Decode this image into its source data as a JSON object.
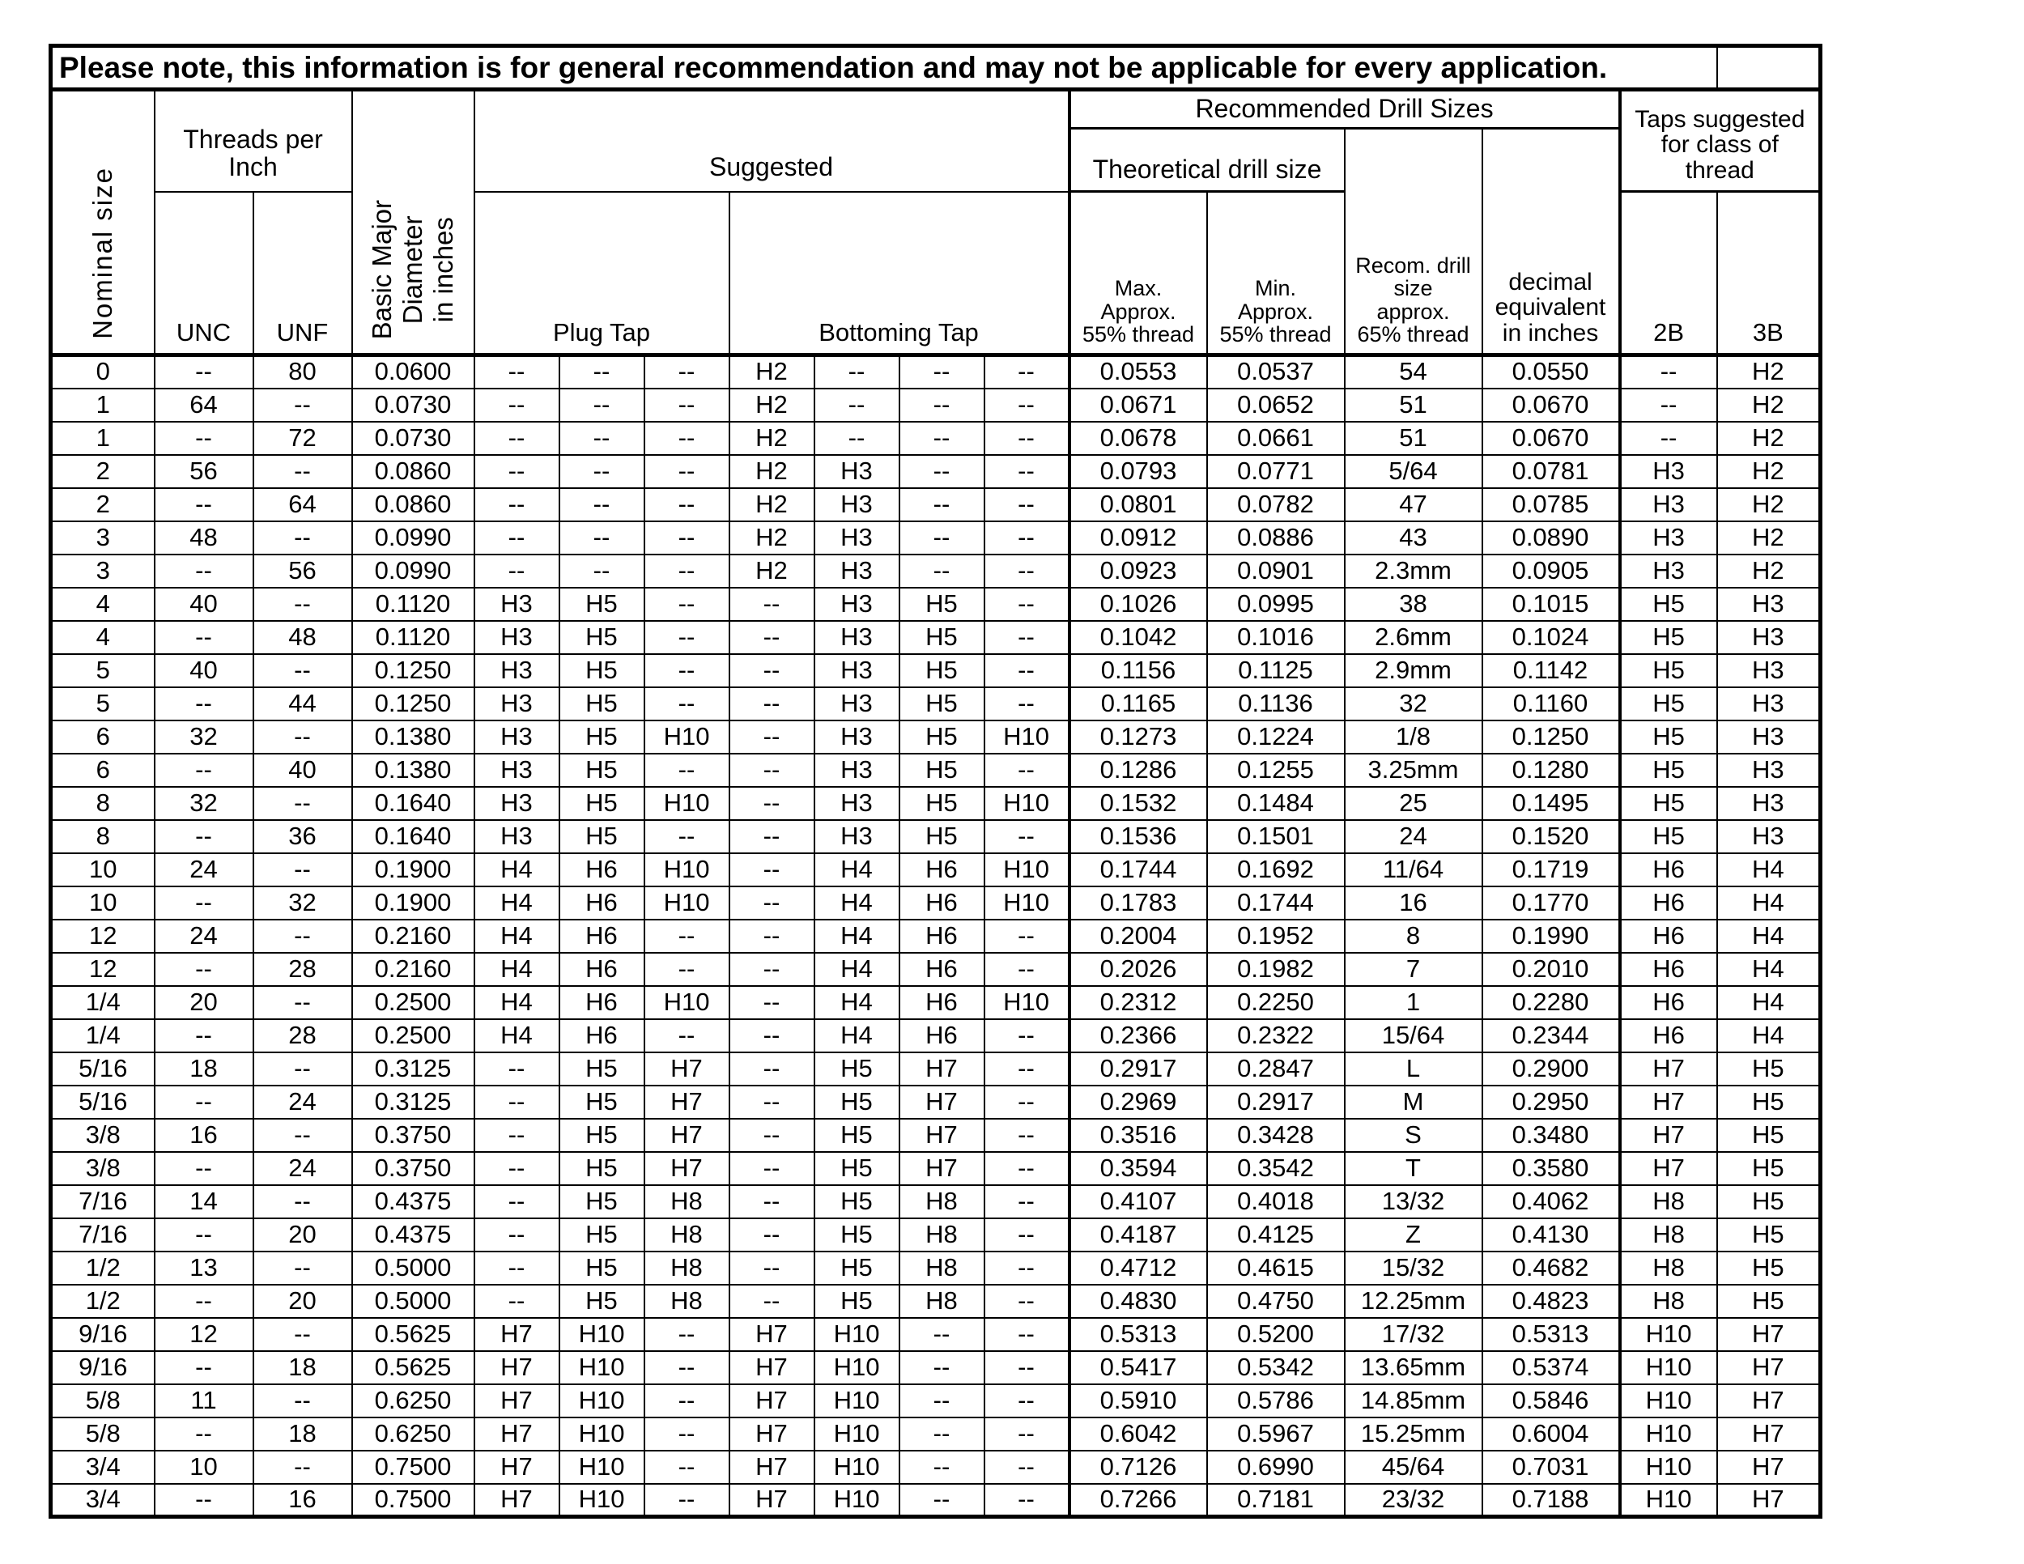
{
  "note": {
    "text": "Please note, this information is for general recommendation and may not be applicable for every application."
  },
  "header": {
    "nominal_size": "Nominal size",
    "threads_per_inch": "Threads per\nInch",
    "unc": "UNC",
    "unf": "UNF",
    "basic_major_diameter": "Basic Major\nDiameter\nin inches",
    "suggested": "Suggested",
    "plug_tap": "Plug Tap",
    "bottoming_tap": "Bottoming Tap",
    "recommended_drill_sizes": "Recommended Drill Sizes",
    "theoretical_drill_size": "Theoretical drill size",
    "max_approx": "Max.\nApprox.\n55% thread",
    "min_approx": "Min.\nApprox.\n55% thread",
    "recom_drill": "Recom. drill\nsize\napprox.\n65% thread",
    "decimal_equivalent": "decimal\nequivalent\nin inches",
    "taps_suggested": "Taps suggested\nfor class of\nthread",
    "class_2b": "2B",
    "class_3b": "3B"
  },
  "column_keys": [
    "nominal_size",
    "unc",
    "unf",
    "basic_major_diameter",
    "plug_tap_1",
    "plug_tap_2",
    "plug_tap_3",
    "bottoming_tap_1",
    "bottoming_tap_2",
    "bottoming_tap_3",
    "bottoming_tap_4",
    "max_approx_55",
    "min_approx_55",
    "recom_drill_65",
    "decimal_equivalent",
    "class_2b",
    "class_3b"
  ],
  "rows": [
    [
      "0",
      "--",
      "80",
      "0.0600",
      "--",
      "--",
      "--",
      "H2",
      "--",
      "--",
      "--",
      "0.0553",
      "0.0537",
      "54",
      "0.0550",
      "--",
      "H2"
    ],
    [
      "1",
      "64",
      "--",
      "0.0730",
      "--",
      "--",
      "--",
      "H2",
      "--",
      "--",
      "--",
      "0.0671",
      "0.0652",
      "51",
      "0.0670",
      "--",
      "H2"
    ],
    [
      "1",
      "--",
      "72",
      "0.0730",
      "--",
      "--",
      "--",
      "H2",
      "--",
      "--",
      "--",
      "0.0678",
      "0.0661",
      "51",
      "0.0670",
      "--",
      "H2"
    ],
    [
      "2",
      "56",
      "--",
      "0.0860",
      "--",
      "--",
      "--",
      "H2",
      "H3",
      "--",
      "--",
      "0.0793",
      "0.0771",
      "5/64",
      "0.0781",
      "H3",
      "H2"
    ],
    [
      "2",
      "--",
      "64",
      "0.0860",
      "--",
      "--",
      "--",
      "H2",
      "H3",
      "--",
      "--",
      "0.0801",
      "0.0782",
      "47",
      "0.0785",
      "H3",
      "H2"
    ],
    [
      "3",
      "48",
      "--",
      "0.0990",
      "--",
      "--",
      "--",
      "H2",
      "H3",
      "--",
      "--",
      "0.0912",
      "0.0886",
      "43",
      "0.0890",
      "H3",
      "H2"
    ],
    [
      "3",
      "--",
      "56",
      "0.0990",
      "--",
      "--",
      "--",
      "H2",
      "H3",
      "--",
      "--",
      "0.0923",
      "0.0901",
      "2.3mm",
      "0.0905",
      "H3",
      "H2"
    ],
    [
      "4",
      "40",
      "--",
      "0.1120",
      "H3",
      "H5",
      "--",
      "--",
      "H3",
      "H5",
      "--",
      "0.1026",
      "0.0995",
      "38",
      "0.1015",
      "H5",
      "H3"
    ],
    [
      "4",
      "--",
      "48",
      "0.1120",
      "H3",
      "H5",
      "--",
      "--",
      "H3",
      "H5",
      "--",
      "0.1042",
      "0.1016",
      "2.6mm",
      "0.1024",
      "H5",
      "H3"
    ],
    [
      "5",
      "40",
      "--",
      "0.1250",
      "H3",
      "H5",
      "--",
      "--",
      "H3",
      "H5",
      "--",
      "0.1156",
      "0.1125",
      "2.9mm",
      "0.1142",
      "H5",
      "H3"
    ],
    [
      "5",
      "--",
      "44",
      "0.1250",
      "H3",
      "H5",
      "--",
      "--",
      "H3",
      "H5",
      "--",
      "0.1165",
      "0.1136",
      "32",
      "0.1160",
      "H5",
      "H3"
    ],
    [
      "6",
      "32",
      "--",
      "0.1380",
      "H3",
      "H5",
      "H10",
      "--",
      "H3",
      "H5",
      "H10",
      "0.1273",
      "0.1224",
      "1/8",
      "0.1250",
      "H5",
      "H3"
    ],
    [
      "6",
      "--",
      "40",
      "0.1380",
      "H3",
      "H5",
      "--",
      "--",
      "H3",
      "H5",
      "--",
      "0.1286",
      "0.1255",
      "3.25mm",
      "0.1280",
      "H5",
      "H3"
    ],
    [
      "8",
      "32",
      "--",
      "0.1640",
      "H3",
      "H5",
      "H10",
      "--",
      "H3",
      "H5",
      "H10",
      "0.1532",
      "0.1484",
      "25",
      "0.1495",
      "H5",
      "H3"
    ],
    [
      "8",
      "--",
      "36",
      "0.1640",
      "H3",
      "H5",
      "--",
      "--",
      "H3",
      "H5",
      "--",
      "0.1536",
      "0.1501",
      "24",
      "0.1520",
      "H5",
      "H3"
    ],
    [
      "10",
      "24",
      "--",
      "0.1900",
      "H4",
      "H6",
      "H10",
      "--",
      "H4",
      "H6",
      "H10",
      "0.1744",
      "0.1692",
      "11/64",
      "0.1719",
      "H6",
      "H4"
    ],
    [
      "10",
      "--",
      "32",
      "0.1900",
      "H4",
      "H6",
      "H10",
      "--",
      "H4",
      "H6",
      "H10",
      "0.1783",
      "0.1744",
      "16",
      "0.1770",
      "H6",
      "H4"
    ],
    [
      "12",
      "24",
      "--",
      "0.2160",
      "H4",
      "H6",
      "--",
      "--",
      "H4",
      "H6",
      "--",
      "0.2004",
      "0.1952",
      "8",
      "0.1990",
      "H6",
      "H4"
    ],
    [
      "12",
      "--",
      "28",
      "0.2160",
      "H4",
      "H6",
      "--",
      "--",
      "H4",
      "H6",
      "--",
      "0.2026",
      "0.1982",
      "7",
      "0.2010",
      "H6",
      "H4"
    ],
    [
      "1/4",
      "20",
      "--",
      "0.2500",
      "H4",
      "H6",
      "H10",
      "--",
      "H4",
      "H6",
      "H10",
      "0.2312",
      "0.2250",
      "1",
      "0.2280",
      "H6",
      "H4"
    ],
    [
      "1/4",
      "--",
      "28",
      "0.2500",
      "H4",
      "H6",
      "--",
      "--",
      "H4",
      "H6",
      "--",
      "0.2366",
      "0.2322",
      "15/64",
      "0.2344",
      "H6",
      "H4"
    ],
    [
      "5/16",
      "18",
      "--",
      "0.3125",
      "--",
      "H5",
      "H7",
      "--",
      "H5",
      "H7",
      "--",
      "0.2917",
      "0.2847",
      "L",
      "0.2900",
      "H7",
      "H5"
    ],
    [
      "5/16",
      "--",
      "24",
      "0.3125",
      "--",
      "H5",
      "H7",
      "--",
      "H5",
      "H7",
      "--",
      "0.2969",
      "0.2917",
      "M",
      "0.2950",
      "H7",
      "H5"
    ],
    [
      "3/8",
      "16",
      "--",
      "0.3750",
      "--",
      "H5",
      "H7",
      "--",
      "H5",
      "H7",
      "--",
      "0.3516",
      "0.3428",
      "S",
      "0.3480",
      "H7",
      "H5"
    ],
    [
      "3/8",
      "--",
      "24",
      "0.3750",
      "--",
      "H5",
      "H7",
      "--",
      "H5",
      "H7",
      "--",
      "0.3594",
      "0.3542",
      "T",
      "0.3580",
      "H7",
      "H5"
    ],
    [
      "7/16",
      "14",
      "--",
      "0.4375",
      "--",
      "H5",
      "H8",
      "--",
      "H5",
      "H8",
      "--",
      "0.4107",
      "0.4018",
      "13/32",
      "0.4062",
      "H8",
      "H5"
    ],
    [
      "7/16",
      "--",
      "20",
      "0.4375",
      "--",
      "H5",
      "H8",
      "--",
      "H5",
      "H8",
      "--",
      "0.4187",
      "0.4125",
      "Z",
      "0.4130",
      "H8",
      "H5"
    ],
    [
      "1/2",
      "13",
      "--",
      "0.5000",
      "--",
      "H5",
      "H8",
      "--",
      "H5",
      "H8",
      "--",
      "0.4712",
      "0.4615",
      "15/32",
      "0.4682",
      "H8",
      "H5"
    ],
    [
      "1/2",
      "--",
      "20",
      "0.5000",
      "--",
      "H5",
      "H8",
      "--",
      "H5",
      "H8",
      "--",
      "0.4830",
      "0.4750",
      "12.25mm",
      "0.4823",
      "H8",
      "H5"
    ],
    [
      "9/16",
      "12",
      "--",
      "0.5625",
      "H7",
      "H10",
      "--",
      "H7",
      "H10",
      "--",
      "--",
      "0.5313",
      "0.5200",
      "17/32",
      "0.5313",
      "H10",
      "H7"
    ],
    [
      "9/16",
      "--",
      "18",
      "0.5625",
      "H7",
      "H10",
      "--",
      "H7",
      "H10",
      "--",
      "--",
      "0.5417",
      "0.5342",
      "13.65mm",
      "0.5374",
      "H10",
      "H7"
    ],
    [
      "5/8",
      "11",
      "--",
      "0.6250",
      "H7",
      "H10",
      "--",
      "H7",
      "H10",
      "--",
      "--",
      "0.5910",
      "0.5786",
      "14.85mm",
      "0.5846",
      "H10",
      "H7"
    ],
    [
      "5/8",
      "--",
      "18",
      "0.6250",
      "H7",
      "H10",
      "--",
      "H7",
      "H10",
      "--",
      "--",
      "0.6042",
      "0.5967",
      "15.25mm",
      "0.6004",
      "H10",
      "H7"
    ],
    [
      "3/4",
      "10",
      "--",
      "0.7500",
      "H7",
      "H10",
      "--",
      "H7",
      "H10",
      "--",
      "--",
      "0.7126",
      "0.6990",
      "45/64",
      "0.7031",
      "H10",
      "H7"
    ],
    [
      "3/4",
      "--",
      "16",
      "0.7500",
      "H7",
      "H10",
      "--",
      "H7",
      "H10",
      "--",
      "--",
      "0.7266",
      "0.7181",
      "23/32",
      "0.7188",
      "H10",
      "H7"
    ]
  ]
}
